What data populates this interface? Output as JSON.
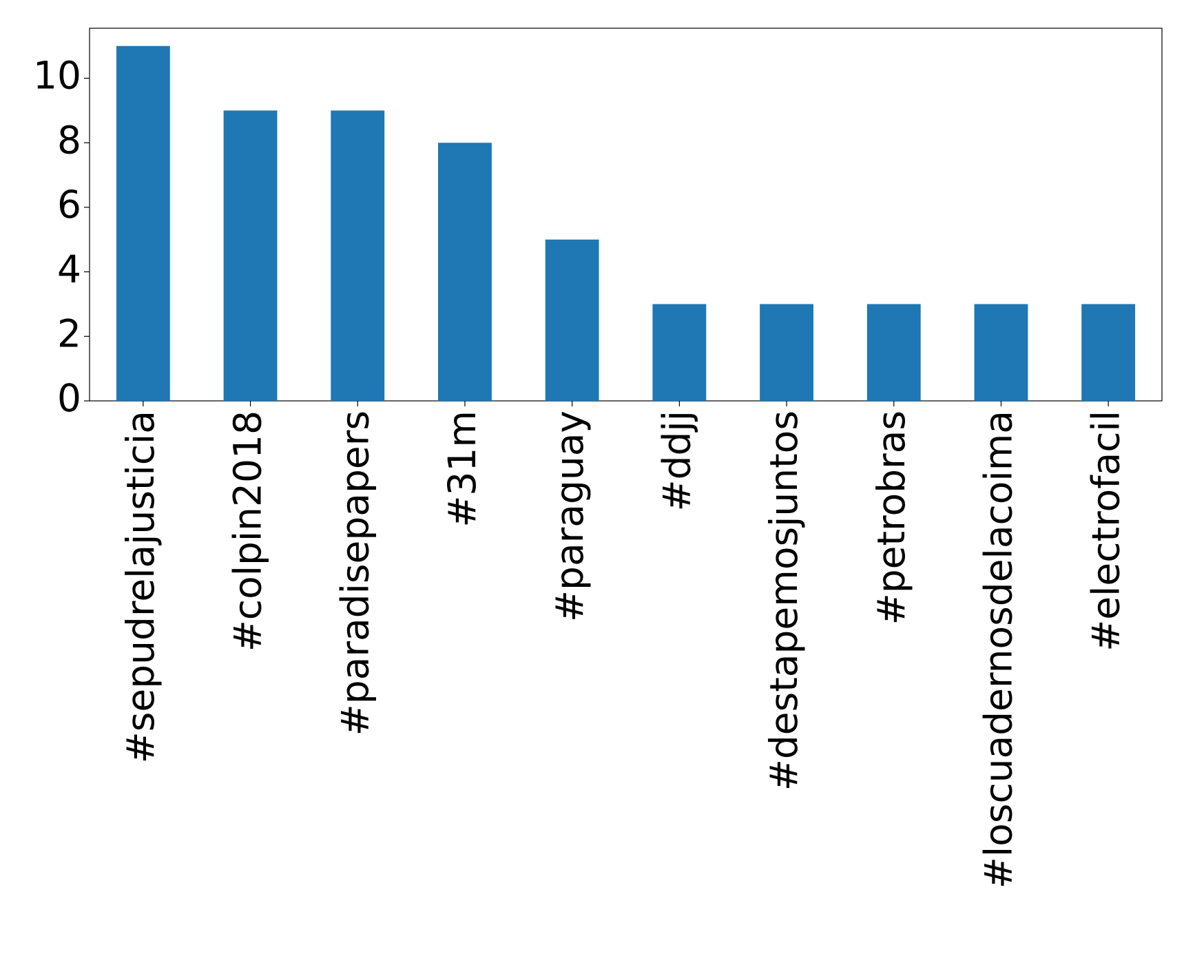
{
  "chart_data": {
    "type": "bar",
    "categories": [
      "#sepudrelajusticia",
      "#colpin2018",
      "#paradisepapers",
      "#31m",
      "#paraguay",
      "#ddjj",
      "#destapemosjuntos",
      "#petrobras",
      "#loscuadernosdelacoima",
      "#electrofacil"
    ],
    "values": [
      11,
      9,
      9,
      8,
      5,
      3,
      3,
      3,
      3,
      3
    ],
    "color": "#1f77b4",
    "ylim": [
      0,
      11.55
    ],
    "yticks": [
      0,
      2,
      4,
      6,
      8,
      10
    ],
    "grid": false
  }
}
